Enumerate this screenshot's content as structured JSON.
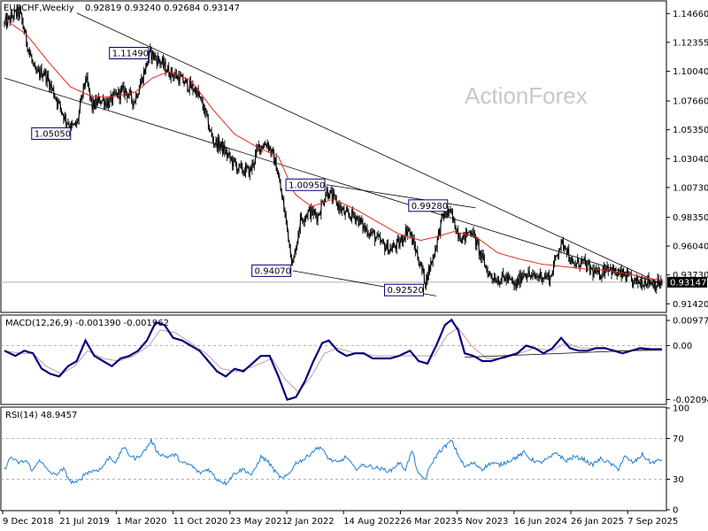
{
  "watermark": "ActionForex",
  "header": {
    "symbol": "EURCHF,Weekly",
    "ohlc": "0.92819 0.93240 0.92684 0.93147"
  },
  "colors": {
    "candle": "#000000",
    "ma": "#e8291c",
    "macd": "#00007f",
    "signal": "#c89a9a",
    "rsi": "#1f7fd0",
    "label_border": "#00007f",
    "price_box": "#000000"
  },
  "chart_data": [
    {
      "type": "candlestick",
      "panel": "price",
      "timeframe": "weekly",
      "price_axis": {
        "ticks": [
          "1.14660",
          "1.12355",
          "1.10040",
          "1.07660",
          "1.05350",
          "1.03040",
          "1.00730",
          "0.98350",
          "0.96040",
          "0.93730",
          "0.91420"
        ],
        "ylim": [
          0.908,
          1.156
        ]
      },
      "current_price": "0.93147",
      "time_axis": [
        "9 Dec 2018",
        "21 Jul 2019",
        "1 Mar 2020",
        "11 Oct 2020",
        "23 May 2021",
        "2 Jan 2022",
        "14 Aug 2022",
        "26 Mar 2023",
        "5 Nov 2023",
        "16 Jun 2024",
        "26 Jan 2025",
        "7 Sep 2025"
      ],
      "anchors": [
        [
          0,
          1.138
        ],
        [
          8,
          1.145
        ],
        [
          14,
          1.147
        ],
        [
          20,
          1.125
        ],
        [
          28,
          1.098
        ],
        [
          36,
          1.1
        ],
        [
          44,
          1.085
        ],
        [
          55,
          1.063
        ],
        [
          62,
          1.055
        ],
        [
          66,
          1.058
        ],
        [
          74,
          1.095
        ],
        [
          80,
          1.072
        ],
        [
          88,
          1.078
        ],
        [
          95,
          1.075
        ],
        [
          103,
          1.082
        ],
        [
          110,
          1.085
        ],
        [
          118,
          1.076
        ],
        [
          126,
          1.096
        ],
        [
          133,
          1.115
        ],
        [
          142,
          1.108
        ],
        [
          150,
          1.1
        ],
        [
          158,
          1.096
        ],
        [
          166,
          1.09
        ],
        [
          175,
          1.085
        ],
        [
          182,
          1.07
        ],
        [
          190,
          1.045
        ],
        [
          198,
          1.04
        ],
        [
          206,
          1.03
        ],
        [
          214,
          1.022
        ],
        [
          224,
          1.02
        ],
        [
          232,
          1.04
        ],
        [
          240,
          1.043
        ],
        [
          248,
          1.025
        ],
        [
          256,
          0.985
        ],
        [
          263,
          0.945
        ],
        [
          270,
          0.982
        ],
        [
          278,
          0.988
        ],
        [
          286,
          0.985
        ],
        [
          294,
          1.005
        ],
        [
          303,
          0.995
        ],
        [
          311,
          0.985
        ],
        [
          320,
          0.985
        ],
        [
          328,
          0.975
        ],
        [
          336,
          0.97
        ],
        [
          344,
          0.962
        ],
        [
          352,
          0.958
        ],
        [
          360,
          0.962
        ],
        [
          368,
          0.975
        ],
        [
          376,
          0.955
        ],
        [
          384,
          0.932
        ],
        [
          392,
          0.955
        ],
        [
          400,
          0.985
        ],
        [
          406,
          0.988
        ],
        [
          412,
          0.975
        ],
        [
          418,
          0.966
        ],
        [
          426,
          0.974
        ],
        [
          434,
          0.954
        ],
        [
          442,
          0.938
        ],
        [
          450,
          0.934
        ],
        [
          458,
          0.935
        ],
        [
          466,
          0.928
        ],
        [
          474,
          0.94
        ],
        [
          482,
          0.935
        ],
        [
          490,
          0.937
        ],
        [
          498,
          0.935
        ],
        [
          506,
          0.96
        ],
        [
          512,
          0.962
        ],
        [
          518,
          0.944
        ],
        [
          526,
          0.948
        ],
        [
          534,
          0.942
        ],
        [
          542,
          0.937
        ],
        [
          550,
          0.945
        ],
        [
          558,
          0.938
        ],
        [
          566,
          0.937
        ],
        [
          574,
          0.931
        ],
        [
          580,
          0.932
        ],
        [
          586,
          0.933
        ],
        [
          594,
          0.93
        ],
        [
          600,
          0.931
        ]
      ],
      "moving_average": {
        "anchors": [
          [
            0,
            1.142
          ],
          [
            20,
            1.13
          ],
          [
            40,
            1.108
          ],
          [
            60,
            1.088
          ],
          [
            80,
            1.08
          ],
          [
            100,
            1.08
          ],
          [
            120,
            1.084
          ],
          [
            135,
            1.095
          ],
          [
            150,
            1.1
          ],
          [
            170,
            1.093
          ],
          [
            190,
            1.07
          ],
          [
            210,
            1.05
          ],
          [
            230,
            1.04
          ],
          [
            250,
            1.032
          ],
          [
            265,
            1.002
          ],
          [
            280,
            0.992
          ],
          [
            300,
            0.998
          ],
          [
            320,
            0.99
          ],
          [
            340,
            0.98
          ],
          [
            360,
            0.97
          ],
          [
            380,
            0.965
          ],
          [
            395,
            0.968
          ],
          [
            410,
            0.972
          ],
          [
            430,
            0.968
          ],
          [
            450,
            0.955
          ],
          [
            470,
            0.95
          ],
          [
            490,
            0.946
          ],
          [
            510,
            0.944
          ],
          [
            530,
            0.942
          ],
          [
            550,
            0.941
          ],
          [
            570,
            0.938
          ],
          [
            585,
            0.935
          ],
          [
            600,
            0.933
          ]
        ]
      },
      "annotations": [
        {
          "label": "1.11490",
          "bar": 133,
          "price": 1.1149
        },
        {
          "label": "1.05050",
          "bar": 62,
          "price": 1.0505
        },
        {
          "label": "1.00950",
          "bar": 294,
          "price": 1.0095
        },
        {
          "label": "0.99280",
          "bar": 406,
          "price": 0.9928
        },
        {
          "label": "0.94070",
          "bar": 263,
          "price": 0.9407
        },
        {
          "label": "0.92520",
          "bar": 384,
          "price": 0.9252
        }
      ],
      "trendlines": [
        {
          "from": [
            0,
            1.095
          ],
          "to": [
            600,
            0.93
          ]
        },
        {
          "from": [
            66,
            1.147
          ],
          "to": [
            600,
            0.93
          ]
        },
        {
          "from": [
            263,
            0.9407
          ],
          "to": [
            394,
            0.9205
          ]
        },
        {
          "from": [
            294,
            1.0095
          ],
          "to": [
            430,
            0.991
          ]
        }
      ]
    },
    {
      "type": "line",
      "panel": "macd",
      "title": "MACD(12,26,9) -0.001390 -0.001962",
      "axis_ticks": [
        "0.00977",
        "0.00",
        "-0.020949"
      ],
      "ylim": [
        -0.0225,
        0.0115
      ],
      "macd_anchors": [
        [
          0,
          -0.002
        ],
        [
          10,
          -0.004
        ],
        [
          18,
          -0.002
        ],
        [
          26,
          -0.003
        ],
        [
          34,
          -0.009
        ],
        [
          42,
          -0.011
        ],
        [
          50,
          -0.012
        ],
        [
          58,
          -0.008
        ],
        [
          66,
          -0.006
        ],
        [
          74,
          0.002
        ],
        [
          82,
          -0.004
        ],
        [
          90,
          -0.006
        ],
        [
          98,
          -0.008
        ],
        [
          106,
          -0.005
        ],
        [
          114,
          -0.004
        ],
        [
          122,
          -0.002
        ],
        [
          130,
          0.002
        ],
        [
          138,
          0.009
        ],
        [
          146,
          0.008
        ],
        [
          154,
          0.003
        ],
        [
          162,
          0.002
        ],
        [
          170,
          0.0
        ],
        [
          178,
          -0.002
        ],
        [
          186,
          -0.006
        ],
        [
          194,
          -0.01
        ],
        [
          202,
          -0.012
        ],
        [
          210,
          -0.009
        ],
        [
          218,
          -0.01
        ],
        [
          226,
          -0.007
        ],
        [
          234,
          -0.004
        ],
        [
          242,
          -0.004
        ],
        [
          250,
          -0.012
        ],
        [
          258,
          -0.021
        ],
        [
          266,
          -0.02
        ],
        [
          274,
          -0.014
        ],
        [
          282,
          -0.006
        ],
        [
          290,
          0.001
        ],
        [
          296,
          0.002
        ],
        [
          304,
          -0.002
        ],
        [
          312,
          -0.004
        ],
        [
          320,
          -0.003
        ],
        [
          328,
          -0.003
        ],
        [
          336,
          -0.005
        ],
        [
          344,
          -0.005
        ],
        [
          352,
          -0.005
        ],
        [
          360,
          -0.004
        ],
        [
          370,
          -0.002
        ],
        [
          378,
          -0.006
        ],
        [
          386,
          -0.007
        ],
        [
          394,
          0.0
        ],
        [
          402,
          0.008
        ],
        [
          408,
          0.01
        ],
        [
          414,
          0.006
        ],
        [
          420,
          -0.003
        ],
        [
          428,
          -0.004
        ],
        [
          436,
          -0.006
        ],
        [
          444,
          -0.006
        ],
        [
          452,
          -0.005
        ],
        [
          460,
          -0.004
        ],
        [
          468,
          -0.003
        ],
        [
          476,
          0.0
        ],
        [
          484,
          -0.001
        ],
        [
          492,
          -0.003
        ],
        [
          500,
          -0.001
        ],
        [
          508,
          0.003
        ],
        [
          516,
          -0.001
        ],
        [
          524,
          -0.002
        ],
        [
          532,
          -0.002
        ],
        [
          540,
          -0.001
        ],
        [
          548,
          -0.001
        ],
        [
          556,
          -0.002
        ],
        [
          564,
          -0.003
        ],
        [
          572,
          -0.002
        ],
        [
          580,
          -0.001
        ],
        [
          590,
          -0.0014
        ],
        [
          600,
          -0.0014
        ]
      ],
      "signal_anchors": [
        [
          0,
          -0.002
        ],
        [
          14,
          -0.003
        ],
        [
          26,
          -0.003
        ],
        [
          38,
          -0.008
        ],
        [
          52,
          -0.011
        ],
        [
          64,
          -0.008
        ],
        [
          76,
          -0.002
        ],
        [
          90,
          -0.005
        ],
        [
          104,
          -0.006
        ],
        [
          118,
          -0.004
        ],
        [
          132,
          0.0
        ],
        [
          142,
          0.006
        ],
        [
          156,
          0.005
        ],
        [
          170,
          0.001
        ],
        [
          184,
          -0.003
        ],
        [
          198,
          -0.009
        ],
        [
          212,
          -0.01
        ],
        [
          228,
          -0.008
        ],
        [
          244,
          -0.005
        ],
        [
          256,
          -0.013
        ],
        [
          268,
          -0.018
        ],
        [
          280,
          -0.012
        ],
        [
          292,
          -0.003
        ],
        [
          304,
          -0.001
        ],
        [
          320,
          -0.003
        ],
        [
          340,
          -0.004
        ],
        [
          360,
          -0.004
        ],
        [
          378,
          -0.004
        ],
        [
          392,
          -0.004
        ],
        [
          404,
          0.004
        ],
        [
          414,
          0.007
        ],
        [
          426,
          0.0
        ],
        [
          440,
          -0.005
        ],
        [
          456,
          -0.005
        ],
        [
          470,
          -0.003
        ],
        [
          484,
          -0.001
        ],
        [
          500,
          -0.002
        ],
        [
          512,
          0.001
        ],
        [
          526,
          -0.001
        ],
        [
          544,
          -0.001
        ],
        [
          562,
          -0.002
        ],
        [
          580,
          -0.002
        ],
        [
          600,
          -0.00196
        ]
      ],
      "trendline": {
        "from": [
          420,
          -0.0045
        ],
        "to": [
          600,
          -0.0015
        ]
      }
    },
    {
      "type": "line",
      "panel": "rsi",
      "title": "RSI(14) 48.9457",
      "axis_ticks": [
        "100",
        "70",
        "30",
        "0"
      ],
      "levels": [
        70,
        30
      ],
      "ylim": [
        0,
        100
      ],
      "anchors": [
        [
          0,
          40
        ],
        [
          6,
          52
        ],
        [
          12,
          46
        ],
        [
          20,
          48
        ],
        [
          26,
          38
        ],
        [
          32,
          50
        ],
        [
          38,
          40
        ],
        [
          46,
          34
        ],
        [
          54,
          40
        ],
        [
          60,
          28
        ],
        [
          66,
          26
        ],
        [
          74,
          36
        ],
        [
          80,
          38
        ],
        [
          88,
          40
        ],
        [
          96,
          52
        ],
        [
          102,
          46
        ],
        [
          108,
          62
        ],
        [
          114,
          54
        ],
        [
          120,
          50
        ],
        [
          128,
          58
        ],
        [
          134,
          68
        ],
        [
          140,
          56
        ],
        [
          148,
          52
        ],
        [
          156,
          54
        ],
        [
          162,
          46
        ],
        [
          170,
          44
        ],
        [
          178,
          36
        ],
        [
          186,
          40
        ],
        [
          194,
          30
        ],
        [
          202,
          26
        ],
        [
          210,
          36
        ],
        [
          218,
          40
        ],
        [
          226,
          34
        ],
        [
          234,
          52
        ],
        [
          240,
          48
        ],
        [
          248,
          36
        ],
        [
          254,
          30
        ],
        [
          260,
          36
        ],
        [
          266,
          46
        ],
        [
          274,
          50
        ],
        [
          282,
          58
        ],
        [
          288,
          62
        ],
        [
          296,
          50
        ],
        [
          304,
          46
        ],
        [
          312,
          52
        ],
        [
          320,
          40
        ],
        [
          328,
          44
        ],
        [
          336,
          42
        ],
        [
          344,
          40
        ],
        [
          352,
          38
        ],
        [
          360,
          46
        ],
        [
          366,
          40
        ],
        [
          372,
          58
        ],
        [
          378,
          34
        ],
        [
          384,
          30
        ],
        [
          390,
          46
        ],
        [
          396,
          56
        ],
        [
          402,
          62
        ],
        [
          408,
          68
        ],
        [
          414,
          54
        ],
        [
          420,
          42
        ],
        [
          428,
          46
        ],
        [
          436,
          40
        ],
        [
          444,
          46
        ],
        [
          452,
          44
        ],
        [
          460,
          48
        ],
        [
          468,
          52
        ],
        [
          474,
          56
        ],
        [
          480,
          50
        ],
        [
          488,
          46
        ],
        [
          496,
          50
        ],
        [
          504,
          56
        ],
        [
          512,
          48
        ],
        [
          520,
          52
        ],
        [
          528,
          50
        ],
        [
          536,
          44
        ],
        [
          544,
          50
        ],
        [
          552,
          46
        ],
        [
          560,
          40
        ],
        [
          566,
          52
        ],
        [
          574,
          46
        ],
        [
          582,
          54
        ],
        [
          590,
          46
        ],
        [
          596,
          48
        ],
        [
          600,
          49
        ]
      ]
    }
  ]
}
